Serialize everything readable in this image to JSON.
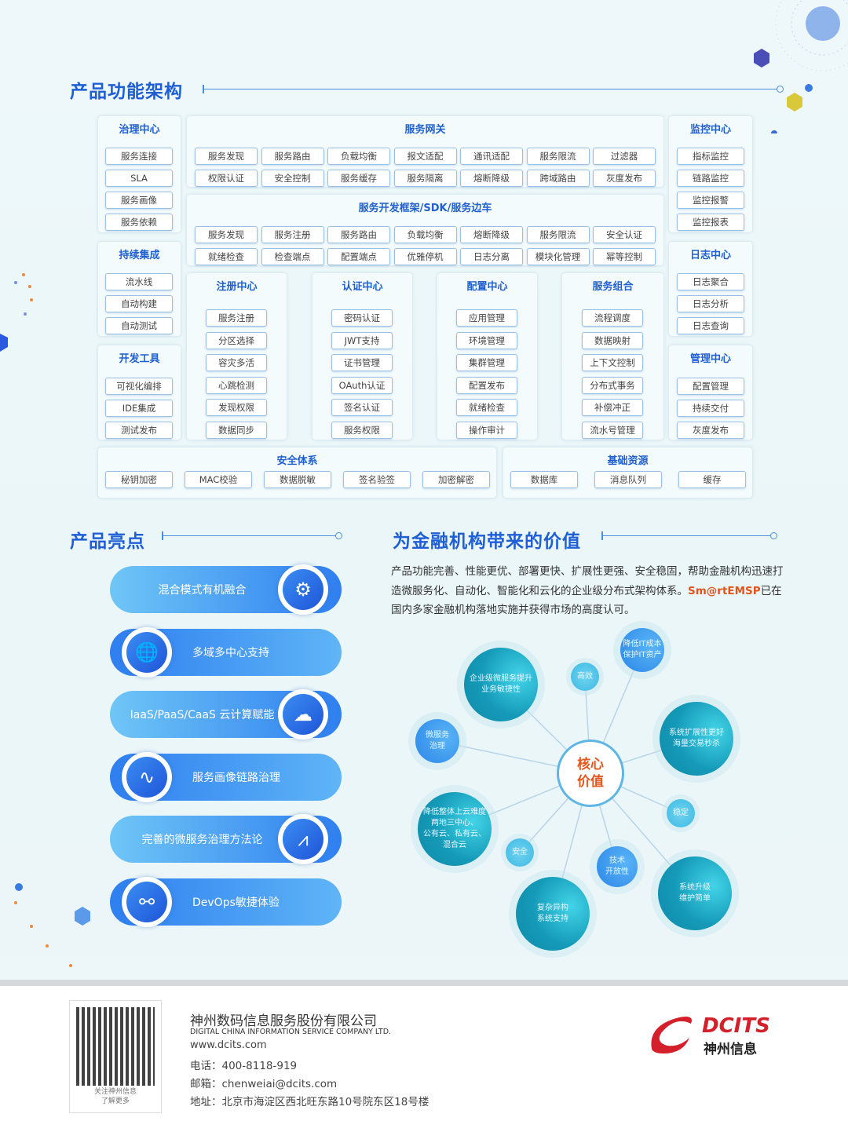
{
  "arch": {
    "title": "产品功能架构",
    "panels": [
      {
        "id": "governance",
        "title": "治理中心",
        "items": [
          "服务连接",
          "SLA",
          "服务画像",
          "服务依赖"
        ]
      },
      {
        "id": "gateway",
        "title": "服务网关",
        "items": [
          "服务发现",
          "服务路由",
          "负载均衡",
          "报文适配",
          "通讯适配",
          "服务限流",
          "过滤器",
          "权限认证",
          "安全控制",
          "服务缓存",
          "服务隔离",
          "熔断降级",
          "跨域路由",
          "灰度发布"
        ]
      },
      {
        "id": "sdk",
        "title": "服务开发框架/SDK/服务边车",
        "items": [
          "服务发现",
          "服务注册",
          "服务路由",
          "负载均衡",
          "熔断降级",
          "服务限流",
          "安全认证",
          "就绪检查",
          "检查端点",
          "配置端点",
          "优雅停机",
          "日志分离",
          "模块化管理",
          "幂等控制"
        ]
      },
      {
        "id": "monitor",
        "title": "监控中心",
        "items": [
          "指标监控",
          "链路监控",
          "监控报警",
          "监控报表"
        ]
      },
      {
        "id": "ci",
        "title": "持续集成",
        "items": [
          "流水线",
          "自动构建",
          "自动测试"
        ]
      },
      {
        "id": "log",
        "title": "日志中心",
        "items": [
          "日志聚合",
          "日志分析",
          "日志查询"
        ]
      },
      {
        "id": "devtools",
        "title": "开发工具",
        "items": [
          "可视化编排",
          "IDE集成",
          "测试发布"
        ]
      },
      {
        "id": "mgmt",
        "title": "管理中心",
        "items": [
          "配置管理",
          "持续交付",
          "灰度发布"
        ]
      },
      {
        "id": "registry",
        "title": "注册中心",
        "items": [
          "服务注册",
          "分区选择",
          "容灾多活",
          "心跳检测",
          "发现权限",
          "数据同步"
        ]
      },
      {
        "id": "auth",
        "title": "认证中心",
        "items": [
          "密码认证",
          "JWT支持",
          "证书管理",
          "OAuth认证",
          "签名认证",
          "服务权限"
        ]
      },
      {
        "id": "config",
        "title": "配置中心",
        "items": [
          "应用管理",
          "环境管理",
          "集群管理",
          "配置发布",
          "就绪检查",
          "操作审计"
        ]
      },
      {
        "id": "compose",
        "title": "服务组合",
        "items": [
          "流程调度",
          "数据映射",
          "上下文控制",
          "分布式事务",
          "补偿冲正",
          "流水号管理"
        ]
      },
      {
        "id": "security",
        "title": "安全体系",
        "items": [
          "秘钥加密",
          "MAC校验",
          "数据脱敏",
          "签名验签",
          "加密解密"
        ]
      },
      {
        "id": "infra",
        "title": "基础资源",
        "items": [
          "数据库",
          "消息队列",
          "缓存"
        ]
      }
    ]
  },
  "highlights": {
    "title": "产品亮点",
    "items": [
      {
        "label": "混合模式有机融合",
        "icon": "gears-icon"
      },
      {
        "label": "多域多中心支持",
        "icon": "globe-icon"
      },
      {
        "label": "IaaS/PaaS/CaaS 云计算赋能",
        "icon": "cloud-icon"
      },
      {
        "label": "服务画像链路治理",
        "icon": "pulse-icon"
      },
      {
        "label": "完善的微服务治理方法论",
        "icon": "chart-icon"
      },
      {
        "label": "DevOps敏捷体验",
        "icon": "share-icon"
      }
    ]
  },
  "value": {
    "title": "为金融机构带来的价值",
    "para_a": "产品功能完善、性能更优、部署更快、扩展性更强、安全稳固，帮助金融机构迅速打造微服务化、自动化、智能化和云化的企业级分布式架构体系。",
    "para_brand": "Sm@rtEMSP",
    "para_b": "已在国内多家金融机构落地实施并获得市场的高度认可。",
    "core": "核心\n价值",
    "bubbles": [
      {
        "text": "企业级微服务提升\n业务敏捷性",
        "kind": "big"
      },
      {
        "text": "高效",
        "kind": "sm"
      },
      {
        "text": "降低IT成本\n保护IT资产",
        "kind": "mid"
      },
      {
        "text": "微服务\n治理",
        "kind": "mid"
      },
      {
        "text": "系统扩展性更好\n海量交易秒杀",
        "kind": "big"
      },
      {
        "text": "稳定",
        "kind": "sm"
      },
      {
        "text": "降低整体上云难度\n两地三中心、\n公有云、私有云、\n混合云",
        "kind": "big"
      },
      {
        "text": "安全",
        "kind": "sm"
      },
      {
        "text": "技术\n开放性",
        "kind": "mid"
      },
      {
        "text": "复杂异构\n系统支持",
        "kind": "big"
      },
      {
        "text": "系统升级\n维护简单",
        "kind": "big"
      }
    ]
  },
  "footer": {
    "qr_caption": "关注神州信息\n了解更多",
    "company": "神州数码信息服务股份有限公司",
    "company_en": "DIGITAL CHINA INFORMATION SERVICE COMPANY LTD.",
    "website": "www.dcits.com",
    "phone": "电话：400-8118-919",
    "email": "邮箱：chenweiai@dcits.com",
    "address": "地址：北京市海淀区西北旺东路10号院东区18号楼",
    "logo_en": "DCITS",
    "logo_cn": "神州信息"
  },
  "colors": {
    "accent": "#1f5fd6",
    "brand_red": "#d4202a",
    "highlight": "#e0541e"
  }
}
